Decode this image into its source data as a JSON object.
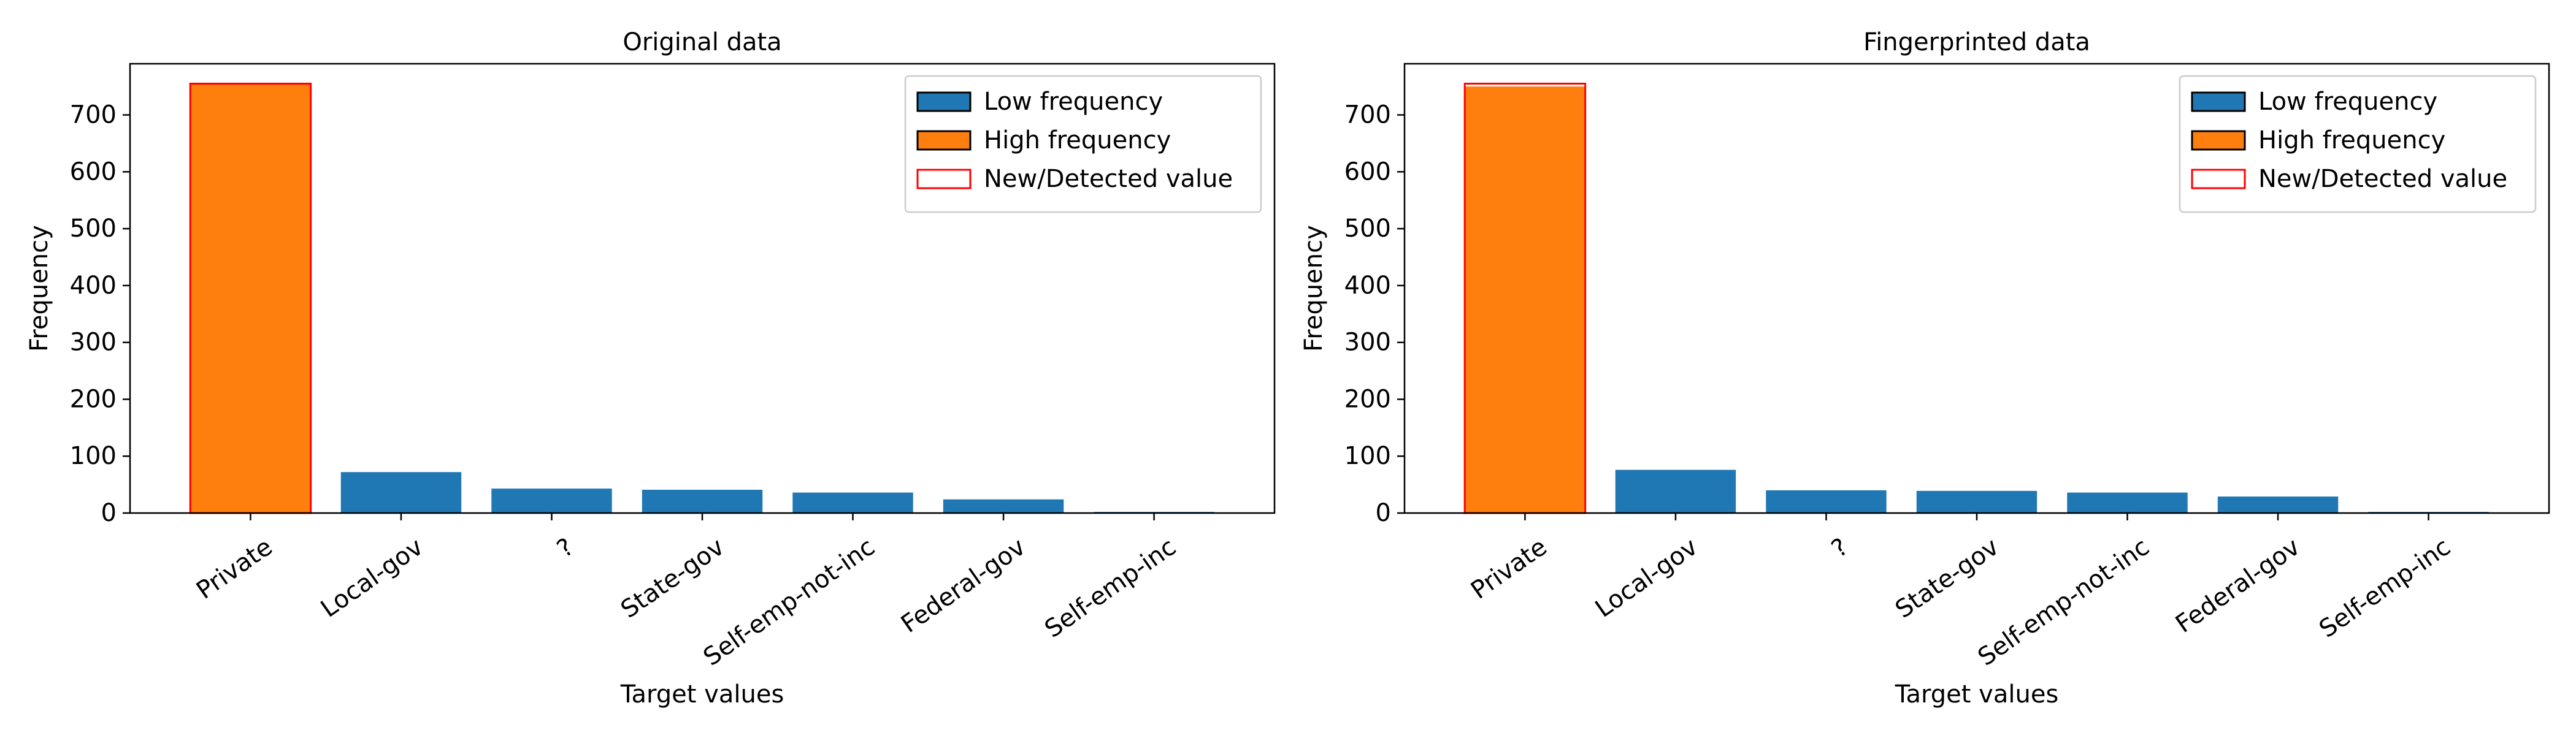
{
  "chart_data": [
    {
      "type": "bar",
      "title": "Original data",
      "xlabel": "Target values",
      "ylabel": "Frequency",
      "categories": [
        "Private",
        "Local-gov",
        "?",
        "State-gov",
        "Self-emp-not-inc",
        "Federal-gov",
        "Self-emp-inc"
      ],
      "values": [
        755,
        72,
        43,
        41,
        36,
        24,
        2
      ],
      "frequency_class": [
        "high",
        "low",
        "low",
        "low",
        "low",
        "low",
        "low"
      ],
      "detected_value": [
        755,
        null,
        null,
        null,
        null,
        null,
        null
      ],
      "ylim": [
        0,
        790
      ],
      "yticks": [
        0,
        100,
        200,
        300,
        400,
        500,
        600,
        700
      ],
      "grid": false,
      "legend_position": "top-right",
      "legend": [
        {
          "label": "Low frequency",
          "style": "low"
        },
        {
          "label": "High frequency",
          "style": "high"
        },
        {
          "label": "New/Detected value",
          "style": "detected"
        }
      ]
    },
    {
      "type": "bar",
      "title": "Fingerprinted data",
      "xlabel": "Target values",
      "ylabel": "Frequency",
      "categories": [
        "Private",
        "Local-gov",
        "?",
        "State-gov",
        "Self-emp-not-inc",
        "Federal-gov",
        "Self-emp-inc"
      ],
      "values": [
        750,
        76,
        40,
        39,
        36,
        29,
        2
      ],
      "frequency_class": [
        "high",
        "low",
        "low",
        "low",
        "low",
        "low",
        "low"
      ],
      "detected_value": [
        755,
        null,
        null,
        null,
        null,
        null,
        null
      ],
      "ylim": [
        0,
        790
      ],
      "yticks": [
        0,
        100,
        200,
        300,
        400,
        500,
        600,
        700
      ],
      "grid": false,
      "legend_position": "top-right",
      "legend": [
        {
          "label": "Low frequency",
          "style": "low"
        },
        {
          "label": "High frequency",
          "style": "high"
        },
        {
          "label": "New/Detected value",
          "style": "detected"
        }
      ]
    }
  ],
  "colors": {
    "low": "#1f77b4",
    "high": "#ff7f0e",
    "detected": "#ff0000",
    "axis": "#000000",
    "legend_border": "#cccccc"
  }
}
